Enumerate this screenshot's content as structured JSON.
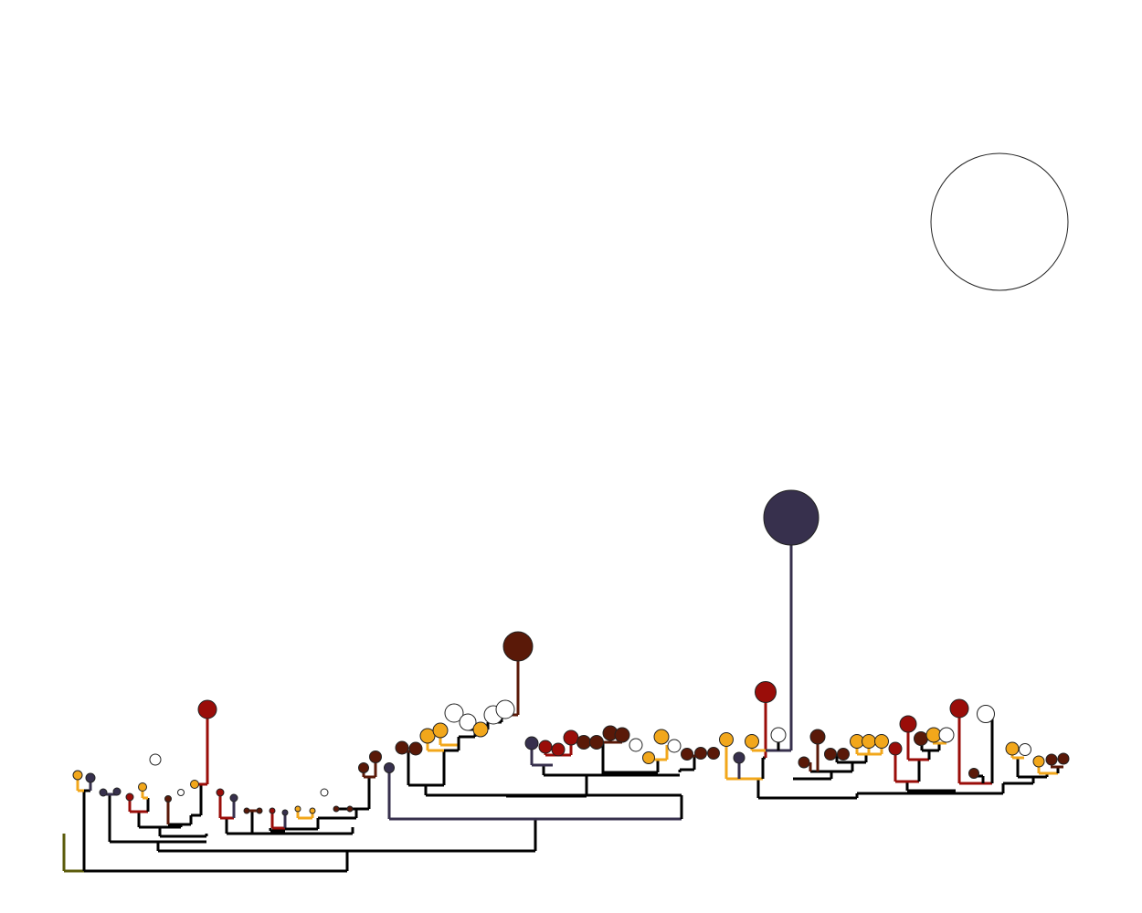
{
  "palette": {
    "red": "#9a0d09",
    "brown": "#5a1908",
    "orange": "#f2a71b",
    "navy": "#37304d",
    "olive": "#5b5b0b",
    "white": "#ffffff",
    "black": "#000000"
  },
  "legend": {
    "shape": "open-circle",
    "label": ""
  },
  "diagram": {
    "type": "phylogenetic-tree-lollipop",
    "title": ""
  }
}
